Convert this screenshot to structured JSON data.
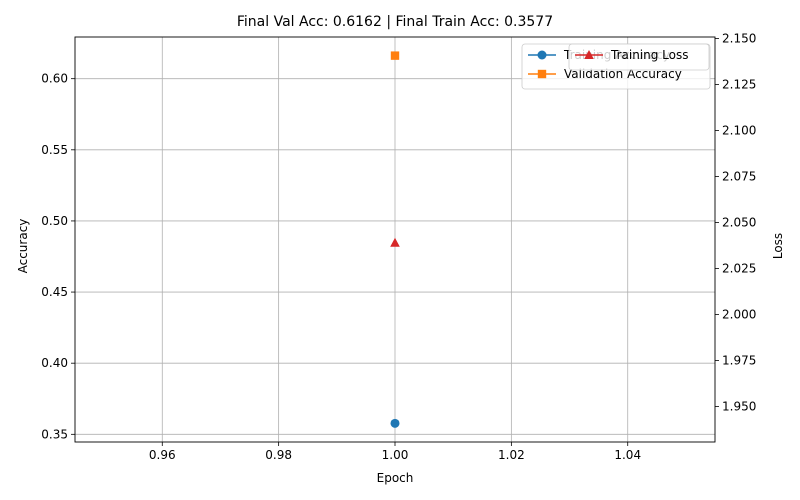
{
  "chart_data": {
    "type": "line",
    "title": "Final Val Acc: 0.6162 | Final Train Acc: 0.3577",
    "xlabel": "Epoch",
    "ylabel_left": "Accuracy",
    "ylabel_right": "Loss",
    "xlim": [
      0.945,
      1.055
    ],
    "ylim_left": [
      0.3446,
      0.6293
    ],
    "ylim_right": [
      1.9307,
      2.1508
    ],
    "x_ticks": [
      "0.96",
      "0.98",
      "1.00",
      "1.02",
      "1.04"
    ],
    "y_left_ticks": [
      "0.35",
      "0.40",
      "0.45",
      "0.50",
      "0.55",
      "0.60"
    ],
    "y_right_ticks": [
      "1.950",
      "1.975",
      "2.000",
      "2.025",
      "2.050",
      "2.075",
      "2.100",
      "2.125",
      "2.150"
    ],
    "grid": true,
    "series": [
      {
        "name": "Training Accuracy",
        "axis": "left",
        "color": "#1f77b4",
        "marker": "circle",
        "x": [
          1
        ],
        "values": [
          0.3577
        ]
      },
      {
        "name": "Validation Accuracy",
        "axis": "left",
        "color": "#ff7f0e",
        "marker": "square",
        "x": [
          1
        ],
        "values": [
          0.6162
        ]
      },
      {
        "name": "Training Loss",
        "axis": "right",
        "color": "#d62728",
        "marker": "triangle",
        "x": [
          1
        ],
        "values": [
          2.039
        ]
      }
    ],
    "legend_left": {
      "placement": "top-right",
      "items": [
        "Training Accuracy",
        "Validation Accuracy"
      ]
    },
    "legend_right": {
      "placement": "top-right",
      "items": [
        "Training Loss"
      ]
    }
  }
}
